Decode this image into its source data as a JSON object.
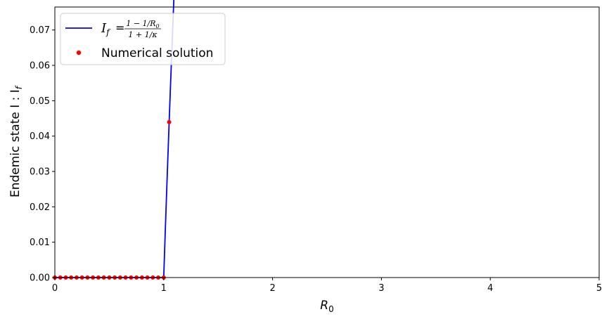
{
  "chart_data": {
    "type": "line",
    "xlabel": "R",
    "xlabel_sub": "0",
    "ylabel": "Endemic state I : I",
    "ylabel_sub": "f",
    "xlim": [
      0,
      5
    ],
    "ylim": [
      0,
      0.0765
    ],
    "kappa": 12,
    "x_ticks": [
      "0",
      "1",
      "2",
      "3",
      "4",
      "5"
    ],
    "y_ticks": [
      "0.00",
      "0.01",
      "0.02",
      "0.03",
      "0.04",
      "0.05",
      "0.06",
      "0.07"
    ],
    "grid": false,
    "legend_position": "top-left",
    "series": [
      {
        "kind": "line",
        "name": "I_f = (1 − 1/R_0)/(1 + 1/κ)",
        "color": "#0000ff",
        "formula": "(1 - 1/R0)/(1 + 1/kappa)"
      },
      {
        "kind": "scatter",
        "name": "Numerical solution",
        "color": "#ff0000",
        "x_start": 0,
        "x_end": 5,
        "x_step": 0.05
      }
    ],
    "legend": {
      "line_lhs": "I",
      "line_lhs_sub": "f",
      "line_eq": "=",
      "line_num": "1 − 1/R",
      "line_num_sub": "0",
      "line_den": "1 + 1/κ",
      "scatter_label": "Numerical solution"
    }
  }
}
